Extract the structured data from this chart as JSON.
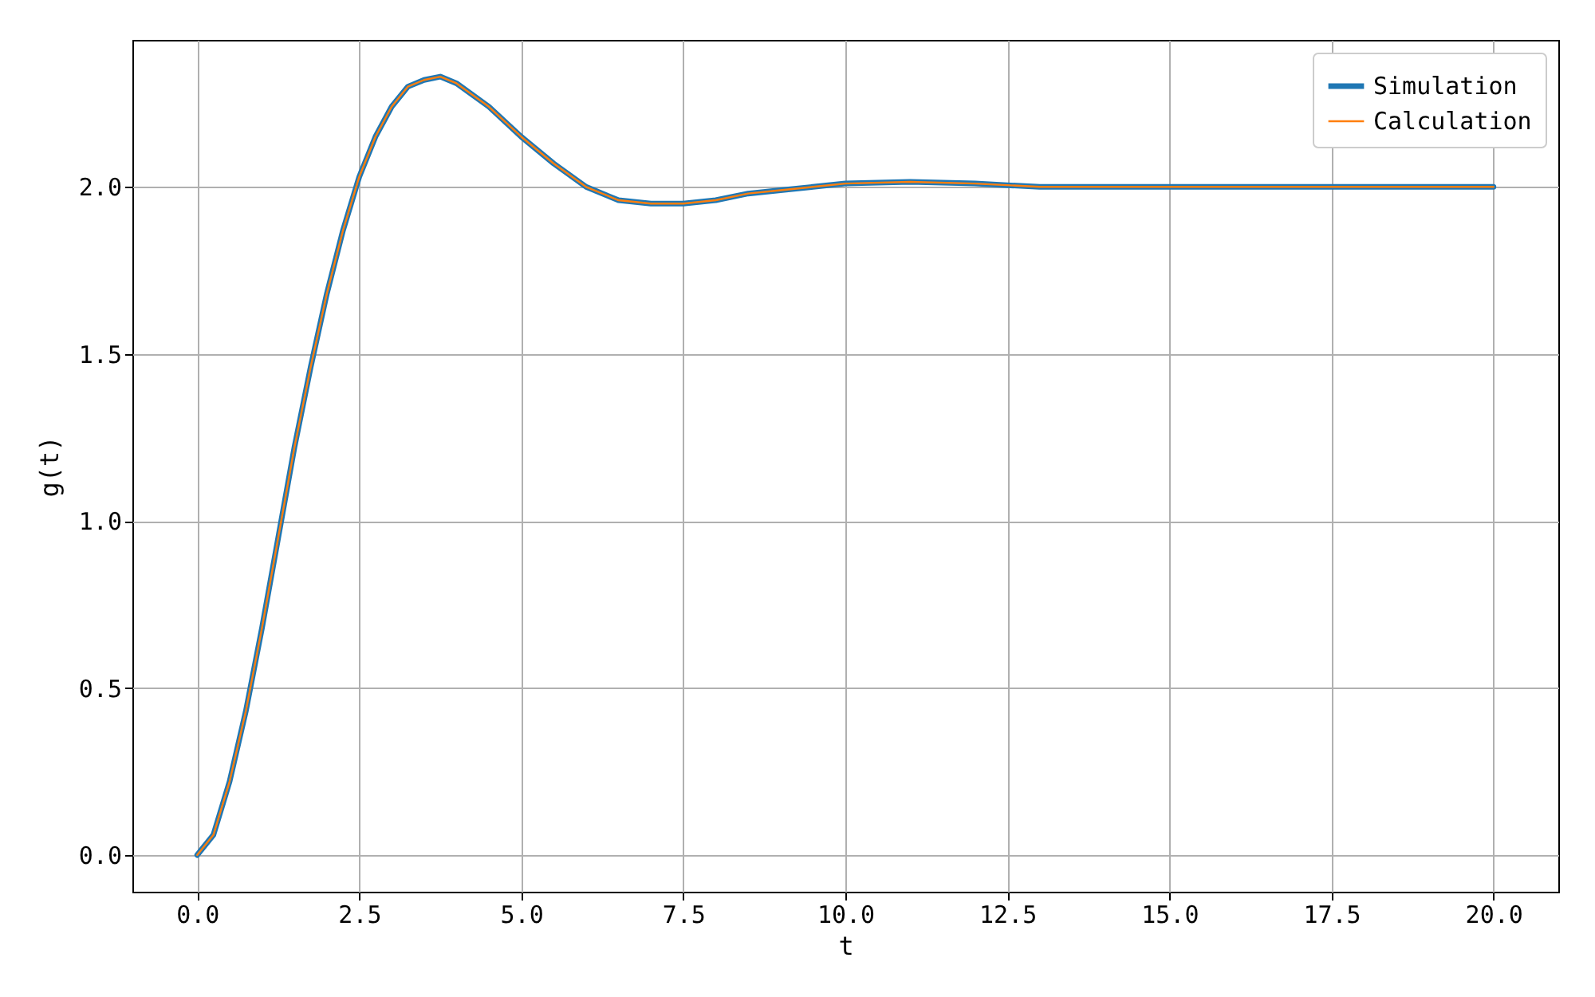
{
  "chart_data": {
    "type": "line",
    "xlabel": "t",
    "ylabel": "g(t)",
    "x": [
      0,
      0.25,
      0.5,
      0.75,
      1,
      1.25,
      1.5,
      1.75,
      2,
      2.25,
      2.5,
      2.75,
      3,
      3.25,
      3.5,
      3.75,
      4,
      4.5,
      5,
      5.5,
      6,
      6.5,
      7,
      7.5,
      8,
      8.5,
      9,
      9.5,
      10,
      11,
      12,
      13,
      14,
      15,
      17.5,
      20
    ],
    "series": [
      {
        "name": "Simulation",
        "color": "#1f77b4",
        "values": [
          0,
          0.06,
          0.22,
          0.43,
          0.68,
          0.95,
          1.22,
          1.46,
          1.68,
          1.87,
          2.03,
          2.15,
          2.24,
          2.3,
          2.32,
          2.33,
          2.31,
          2.24,
          2.15,
          2.07,
          2.0,
          1.96,
          1.95,
          1.95,
          1.96,
          1.98,
          1.99,
          2.0,
          2.01,
          2.015,
          2.01,
          2.0,
          2.0,
          2.0,
          2.0,
          2.0
        ]
      },
      {
        "name": "Calculation",
        "color": "#ff7f0e",
        "values": [
          0,
          0.06,
          0.22,
          0.43,
          0.68,
          0.95,
          1.22,
          1.46,
          1.68,
          1.87,
          2.03,
          2.15,
          2.24,
          2.3,
          2.32,
          2.33,
          2.31,
          2.24,
          2.15,
          2.07,
          2.0,
          1.96,
          1.95,
          1.95,
          1.96,
          1.98,
          1.99,
          2.0,
          2.01,
          2.015,
          2.01,
          2.0,
          2.0,
          2.0,
          2.0,
          2.0
        ]
      }
    ],
    "xlim": [
      -1,
      21
    ],
    "ylim": [
      -0.11,
      2.44
    ],
    "xticks": [
      {
        "value": 0,
        "label": "0.0"
      },
      {
        "value": 2.5,
        "label": "2.5"
      },
      {
        "value": 5,
        "label": "5.0"
      },
      {
        "value": 7.5,
        "label": "7.5"
      },
      {
        "value": 10,
        "label": "10.0"
      },
      {
        "value": 12.5,
        "label": "12.5"
      },
      {
        "value": 15,
        "label": "15.0"
      },
      {
        "value": 17.5,
        "label": "17.5"
      },
      {
        "value": 20,
        "label": "20.0"
      }
    ],
    "yticks": [
      {
        "value": 0,
        "label": "0.0"
      },
      {
        "value": 0.5,
        "label": "0.5"
      },
      {
        "value": 1,
        "label": "1.0"
      },
      {
        "value": 1.5,
        "label": "1.5"
      },
      {
        "value": 2,
        "label": "2.0"
      }
    ],
    "grid": true,
    "legend": "top right"
  }
}
